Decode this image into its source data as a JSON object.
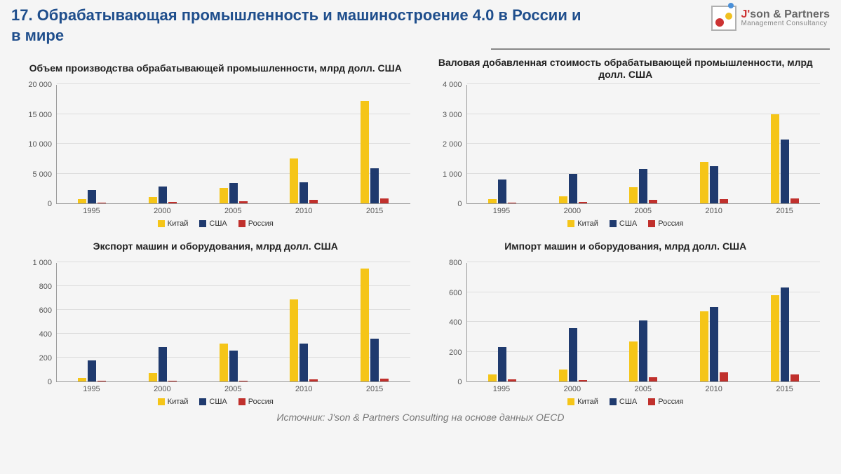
{
  "slide": {
    "title": "17. Обрабатывающая промышленность и машиностроение 4.0 в России и в мире",
    "source": "Источник: J'son & Partners Consulting на основе данных OECD"
  },
  "logo": {
    "line1_j": "J'",
    "line1_rest": "son & Partners",
    "line2": "Management Consultancy"
  },
  "palette": {
    "china": "#f5c518",
    "usa": "#1f3a6e",
    "russia": "#c0302c",
    "grid": "#dddddd",
    "axis": "#999999",
    "text": "#555555",
    "title": "#1f4e8c"
  },
  "legend": {
    "items": [
      {
        "label": "Китай",
        "color_key": "china"
      },
      {
        "label": "США",
        "color_key": "usa"
      },
      {
        "label": "Россия",
        "color_key": "russia"
      }
    ]
  },
  "charts": [
    {
      "id": "production",
      "title": "Объем производства обрабатывающей промышленности, млрд долл. США",
      "ymax": 20000,
      "ystep": 5000,
      "categories": [
        "1995",
        "2000",
        "2005",
        "2010",
        "2015"
      ],
      "series": [
        {
          "key": "china",
          "values": [
            700,
            1100,
            2600,
            7600,
            17200
          ]
        },
        {
          "key": "usa",
          "values": [
            2300,
            2900,
            3400,
            3600,
            5900
          ]
        },
        {
          "key": "russia",
          "values": [
            200,
            300,
            400,
            600,
            800
          ]
        }
      ]
    },
    {
      "id": "gva",
      "title": "Валовая добавленная стоимость обрабатывающей промышленности, млрд долл. США",
      "ymax": 4000,
      "ystep": 1000,
      "categories": [
        "1995",
        "2000",
        "2005",
        "2010",
        "2015"
      ],
      "series": [
        {
          "key": "china",
          "values": [
            150,
            250,
            550,
            1400,
            3000
          ]
        },
        {
          "key": "usa",
          "values": [
            800,
            1000,
            1150,
            1250,
            2150
          ]
        },
        {
          "key": "russia",
          "values": [
            40,
            50,
            120,
            150,
            180
          ]
        }
      ]
    },
    {
      "id": "export",
      "title": "Экспорт машин и оборудования, млрд долл. США",
      "ymax": 1000,
      "ystep": 200,
      "categories": [
        "1995",
        "2000",
        "2005",
        "2010",
        "2015"
      ],
      "series": [
        {
          "key": "china",
          "values": [
            30,
            70,
            320,
            690,
            950
          ]
        },
        {
          "key": "usa",
          "values": [
            180,
            290,
            260,
            320,
            360
          ]
        },
        {
          "key": "russia",
          "values": [
            5,
            8,
            10,
            20,
            25
          ]
        }
      ]
    },
    {
      "id": "import",
      "title": "Импорт машин и оборудования, млрд долл. США",
      "ymax": 800,
      "ystep": 200,
      "categories": [
        "1995",
        "2000",
        "2005",
        "2010",
        "2015"
      ],
      "series": [
        {
          "key": "china",
          "values": [
            50,
            80,
            270,
            470,
            580
          ]
        },
        {
          "key": "usa",
          "values": [
            230,
            360,
            410,
            500,
            630
          ]
        },
        {
          "key": "russia",
          "values": [
            15,
            10,
            30,
            60,
            50
          ]
        }
      ]
    }
  ]
}
